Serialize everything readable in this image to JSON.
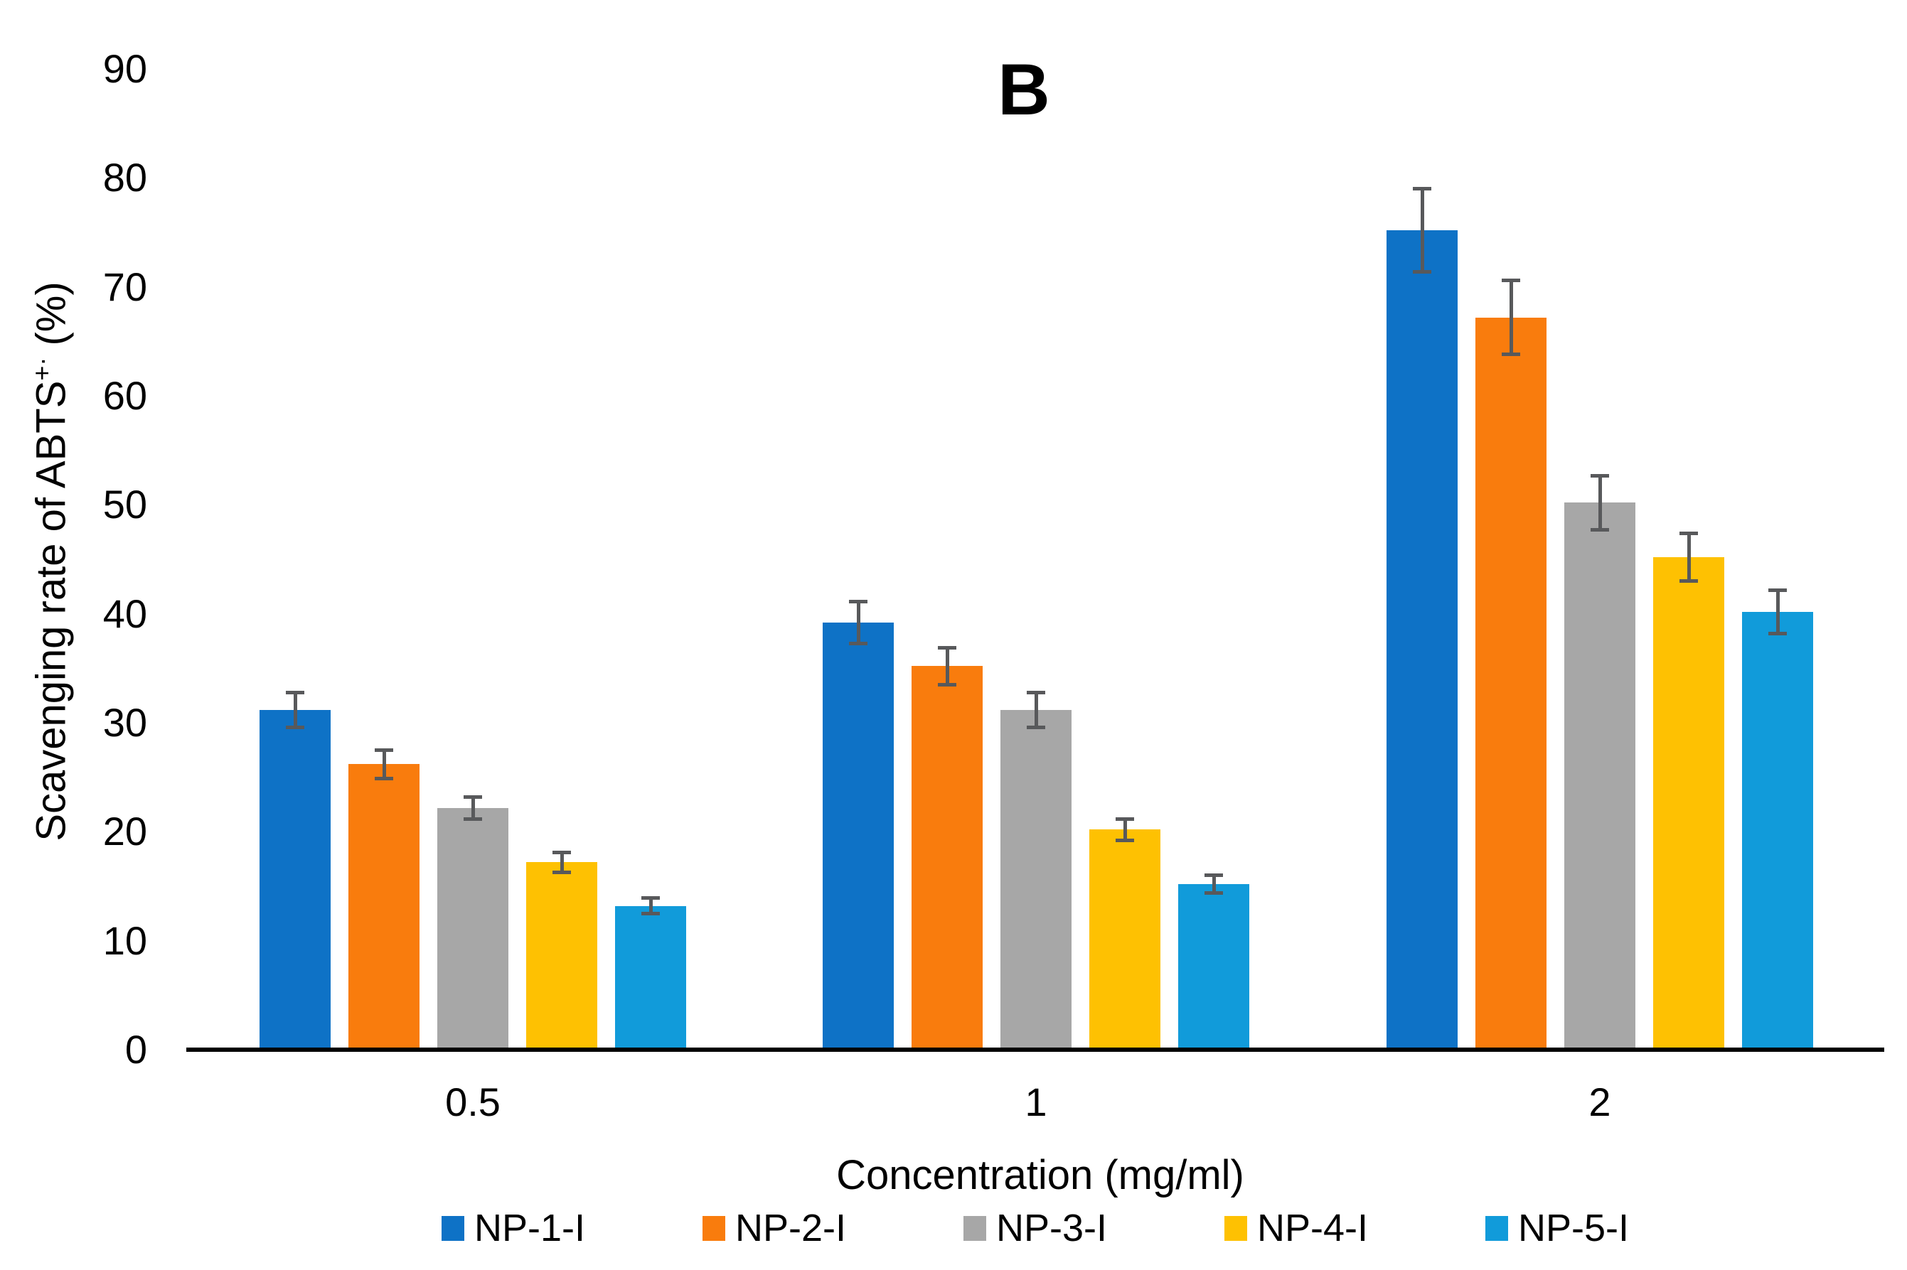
{
  "chart_data": {
    "type": "bar",
    "title": "B",
    "categories": [
      "0.5",
      "1",
      "2"
    ],
    "series": [
      {
        "name": "NP-1-I",
        "color": "#0E72C6",
        "values": [
          31,
          39,
          75
        ],
        "errors": [
          1.6,
          1.9,
          3.8
        ]
      },
      {
        "name": "NP-2-I",
        "color": "#F97C0D",
        "values": [
          26,
          35,
          67
        ],
        "errors": [
          1.3,
          1.7,
          3.4
        ]
      },
      {
        "name": "NP-3-I",
        "color": "#A7A7A7",
        "values": [
          22,
          31,
          50
        ],
        "errors": [
          1.0,
          1.6,
          2.5
        ]
      },
      {
        "name": "NP-4-I",
        "color": "#FEC102",
        "values": [
          17,
          20,
          45
        ],
        "errors": [
          0.9,
          1.0,
          2.2
        ]
      },
      {
        "name": "NP-5-I",
        "color": "#119BDA",
        "values": [
          13,
          15,
          40
        ],
        "errors": [
          0.7,
          0.8,
          2.0
        ]
      }
    ],
    "xlabel": "Concentration (mg/ml)",
    "ylabel": "Scavenging rate of ABTS⁺· (%)",
    "ylabel_parts": {
      "main": "Scavenging rate of ABTS",
      "sup": "+·",
      "end": " (%)"
    },
    "ylim": [
      0,
      90
    ],
    "yticks": [
      0,
      10,
      20,
      30,
      40,
      50,
      60,
      70,
      80,
      90
    ],
    "grid": false,
    "legend_position": "bottom",
    "error_bar_color": "#58595B",
    "axis_line_color": "#000000",
    "background_color": "#FFFFFF"
  }
}
